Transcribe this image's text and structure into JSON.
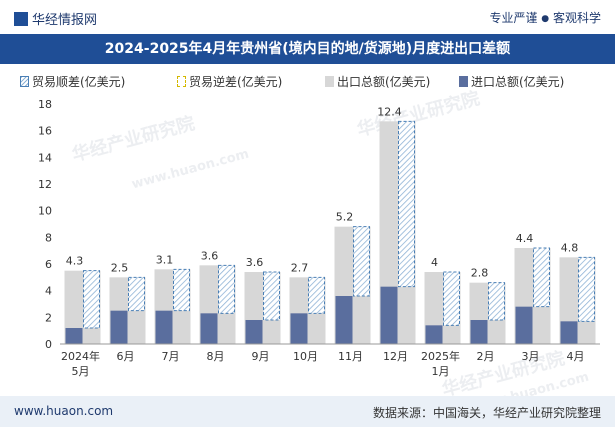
{
  "header": {
    "brand": "华经情报网",
    "slogan_left": "专业严谨",
    "slogan_sep": "●",
    "slogan_right": "客观科学"
  },
  "title": "2024-2025年4月年贵州省(境内目的地/货源地)月度进出口差额",
  "legend": {
    "surplus": "贸易顺差(亿美元)",
    "deficit": "贸易逆差(亿美元)",
    "export": "出口总额(亿美元)",
    "import": "进口总额(亿美元)"
  },
  "footer": {
    "site": "www.huaon.com",
    "source": "数据来源：中国海关，华经产业研究院整理"
  },
  "watermarks": [
    "华经产业研究院",
    "www.huaon.com",
    "华经产业研究院",
    "华经产业研究院",
    "www.huaon.com"
  ],
  "colors": {
    "export": "#d7d7d7",
    "import": "#5a6e9e",
    "surplus_border": "#4a7fb5",
    "surplus_hatch": "#8fb3d6",
    "deficit_border": "#d4b800",
    "title_bg": "#1f4e96"
  },
  "chart_data": {
    "type": "bar",
    "title": "2024-2025年4月年贵州省(境内目的地/货源地)月度进出口差额",
    "categories": [
      {
        "line1": "2024年",
        "line2": "5月"
      },
      {
        "line1": "6月",
        "line2": ""
      },
      {
        "line1": "7月",
        "line2": ""
      },
      {
        "line1": "8月",
        "line2": ""
      },
      {
        "line1": "9月",
        "line2": ""
      },
      {
        "line1": "10月",
        "line2": ""
      },
      {
        "line1": "11月",
        "line2": ""
      },
      {
        "line1": "12月",
        "line2": ""
      },
      {
        "line1": "2025年",
        "line2": "1月"
      },
      {
        "line1": "2月",
        "line2": ""
      },
      {
        "line1": "3月",
        "line2": ""
      },
      {
        "line1": "4月",
        "line2": ""
      }
    ],
    "series": [
      {
        "name": "出口总额(亿美元)",
        "values": [
          5.5,
          5.0,
          5.6,
          5.9,
          5.4,
          5.0,
          8.8,
          16.7,
          5.4,
          4.6,
          7.2,
          6.5
        ]
      },
      {
        "name": "进口总额(亿美元)",
        "values": [
          1.2,
          2.5,
          2.5,
          2.3,
          1.8,
          2.3,
          3.6,
          4.3,
          1.4,
          1.8,
          2.8,
          1.7
        ]
      },
      {
        "name": "贸易顺差(亿美元)",
        "values": [
          4.3,
          2.5,
          3.1,
          3.6,
          3.6,
          2.7,
          5.2,
          12.4,
          4,
          2.8,
          4.4,
          4.8
        ]
      }
    ],
    "surplus_labels": [
      "4.3",
      "2.5",
      "3.1",
      "3.6",
      "3.6",
      "2.7",
      "5.2",
      "12.4",
      "4",
      "2.8",
      "4.4",
      "4.8"
    ],
    "yticks": [
      "0",
      "2",
      "4",
      "6",
      "8",
      "10",
      "12",
      "14",
      "16",
      "18"
    ],
    "ylim": [
      0,
      18
    ],
    "xlabel": "",
    "ylabel": ""
  }
}
